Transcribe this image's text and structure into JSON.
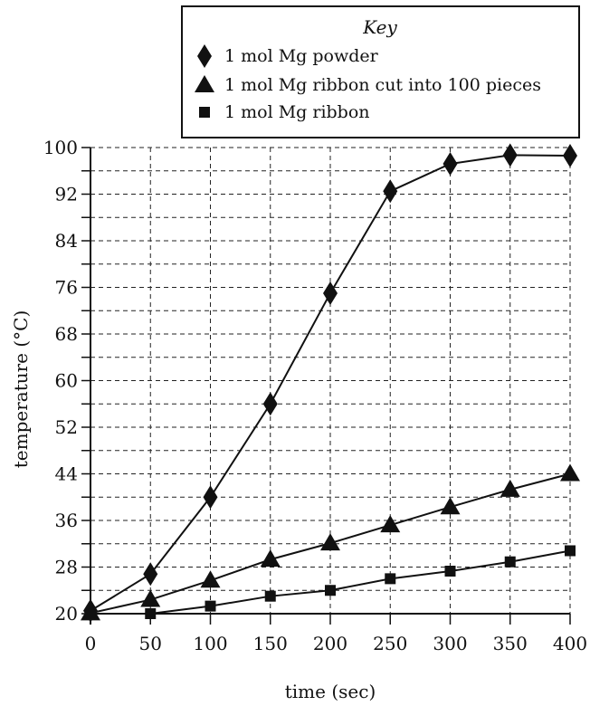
{
  "chart_data": {
    "type": "line",
    "xlabel": "time (sec)",
    "ylabel": "temperature (°C)",
    "x": [
      0,
      50,
      100,
      150,
      200,
      250,
      300,
      350,
      400
    ],
    "xlim": [
      0,
      400
    ],
    "ylim": [
      20,
      100
    ],
    "x_ticks": [
      "0",
      "50",
      "100",
      "150",
      "200",
      "250",
      "300",
      "350",
      "400"
    ],
    "y_ticks": [
      "20",
      "28",
      "36",
      "44",
      "52",
      "60",
      "68",
      "76",
      "84",
      "92",
      "100"
    ],
    "y_tick_values": [
      20,
      28,
      36,
      44,
      52,
      60,
      68,
      76,
      84,
      92,
      100
    ],
    "grid": true,
    "legend": {
      "title": "Key",
      "placement": "top-right"
    },
    "series": [
      {
        "name": "1 mol Mg powder",
        "marker": "diamond",
        "values": [
          20.5,
          26.8,
          40,
          56,
          75,
          92.5,
          97.2,
          98.7,
          98.6
        ]
      },
      {
        "name": "1 mol Mg ribbon cut into 100 pieces",
        "marker": "triangle",
        "values": [
          20.1,
          22.4,
          25.7,
          29.3,
          32.1,
          35.2,
          38.3,
          41.3,
          44
        ]
      },
      {
        "name": "1 mol Mg ribbon",
        "marker": "square",
        "values": [
          20,
          20,
          21.3,
          23,
          24,
          26,
          27.3,
          28.9,
          30.8
        ]
      }
    ],
    "line_color": "#111111"
  }
}
